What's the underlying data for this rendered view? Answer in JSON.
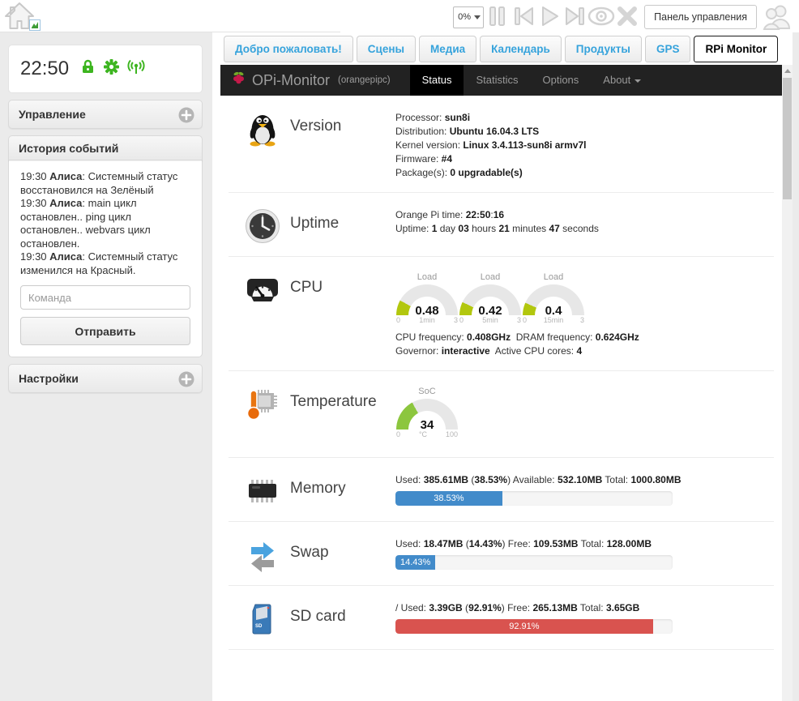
{
  "topbar": {
    "volume": "0%",
    "panel_button": "Панель управления"
  },
  "sidebar": {
    "clock": "22:50",
    "control_header": "Управление",
    "history_header": "История событий",
    "settings_header": "Настройки",
    "events": [
      {
        "time": "19:30 ",
        "name": "Алиса",
        "text": ": Системный статус восстановился на Зелёный"
      },
      {
        "time": "19:30 ",
        "name": "Алиса",
        "text": ": main цикл остановлен.. ping цикл остановлен.. webvars цикл остановлен."
      },
      {
        "time": "19:30 ",
        "name": "Алиса",
        "text": ": Системный статус изменился на Красный."
      }
    ],
    "command_placeholder": "Команда",
    "send_button": "Отправить"
  },
  "tabs": [
    {
      "name": "tab-welcome",
      "label": "Добро пожаловать!",
      "active": false
    },
    {
      "name": "tab-scenes",
      "label": "Сцены",
      "active": false
    },
    {
      "name": "tab-media",
      "label": "Медиа",
      "active": false
    },
    {
      "name": "tab-calendar",
      "label": "Календарь",
      "active": false
    },
    {
      "name": "tab-products",
      "label": "Продукты",
      "active": false
    },
    {
      "name": "tab-gps",
      "label": "GPS",
      "active": false
    },
    {
      "name": "tab-rpi-monitor",
      "label": "RPi Monitor",
      "active": true
    }
  ],
  "monitor": {
    "brand": "OPi-Monitor",
    "hostname": "(orangepipc)",
    "nav": [
      {
        "name": "nav-status",
        "label": "Status",
        "active": true,
        "caret": false
      },
      {
        "name": "nav-statistics",
        "label": "Statistics",
        "active": false,
        "caret": false
      },
      {
        "name": "nav-options",
        "label": "Options",
        "active": false,
        "caret": false
      },
      {
        "name": "nav-about",
        "label": "About",
        "active": false,
        "caret": true
      }
    ],
    "sections": [
      {
        "name": "version",
        "icon": "tux-icon",
        "title": "Version",
        "lines": [
          [
            [
              "Processor: ",
              0
            ],
            [
              "sun8i",
              1
            ]
          ],
          [
            [
              "Distribution: ",
              0
            ],
            [
              "Ubuntu 16.04.3 LTS",
              1
            ]
          ],
          [
            [
              "Kernel version: ",
              0
            ],
            [
              "Linux 3.4.113-sun8i armv7l",
              1
            ]
          ],
          [
            [
              "Firmware: ",
              0
            ],
            [
              "#4",
              1
            ]
          ],
          [
            [
              "Package(s): ",
              0
            ],
            [
              "0 upgradable(s)",
              1
            ]
          ]
        ]
      },
      {
        "name": "uptime",
        "icon": "clock-icon",
        "title": "Uptime",
        "lines": [
          [
            [
              "Orange Pi time: ",
              0
            ],
            [
              "22:50",
              1
            ],
            [
              ":",
              0
            ],
            [
              "16",
              1
            ]
          ],
          [
            [
              "Uptime: ",
              0
            ],
            [
              "1",
              1
            ],
            [
              " day ",
              0
            ],
            [
              "03",
              1
            ],
            [
              " hours ",
              0
            ],
            [
              "21",
              1
            ],
            [
              " minutes ",
              0
            ],
            [
              "47",
              1
            ],
            [
              " seconds",
              0
            ]
          ]
        ]
      },
      {
        "name": "cpu",
        "icon": "speedometer-icon",
        "title": "CPU",
        "gauges": [
          {
            "title": "Load",
            "value": "0.48",
            "min": "0",
            "sub": "1min",
            "max": "3",
            "fraction": 0.16,
            "color": "#b2c70e"
          },
          {
            "title": "Load",
            "value": "0.42",
            "min": "0",
            "sub": "5min",
            "max": "3",
            "fraction": 0.14,
            "color": "#b2c70e"
          },
          {
            "title": "Load",
            "value": "0.4",
            "min": "0",
            "sub": "15min",
            "max": "3",
            "fraction": 0.133,
            "color": "#b2c70e"
          }
        ],
        "lines": [
          [
            [
              "CPU frequency: ",
              0
            ],
            [
              "0.408GHz",
              1
            ],
            [
              "  DRAM frequency: ",
              0
            ],
            [
              "0.624GHz",
              1
            ]
          ],
          [
            [
              "Governor: ",
              0
            ],
            [
              "interactive",
              1
            ],
            [
              "  Active CPU cores: ",
              0
            ],
            [
              "4",
              1
            ]
          ]
        ]
      },
      {
        "name": "temperature",
        "icon": "thermometer-icon",
        "title": "Temperature",
        "gauges": [
          {
            "title": "SoC",
            "value": "34",
            "min": "0",
            "sub": "°C",
            "max": "100",
            "fraction": 0.34,
            "color": "#8cc63e"
          }
        ],
        "lines": []
      },
      {
        "name": "memory",
        "icon": "memory-chip-icon",
        "title": "Memory",
        "lines": [
          [
            [
              "Used: ",
              0
            ],
            [
              "385.61MB",
              1
            ],
            [
              " (",
              0
            ],
            [
              "38.53%",
              1
            ],
            [
              ") Available: ",
              0
            ],
            [
              "532.10MB",
              1
            ],
            [
              " Total: ",
              0
            ],
            [
              "1000.80MB",
              1
            ]
          ]
        ],
        "progress": {
          "percent": 38.53,
          "label": "38.53%",
          "color": "#428bca"
        }
      },
      {
        "name": "swap",
        "icon": "swap-icon",
        "title": "Swap",
        "lines": [
          [
            [
              "Used: ",
              0
            ],
            [
              "18.47MB",
              1
            ],
            [
              " (",
              0
            ],
            [
              "14.43%",
              1
            ],
            [
              ") Free: ",
              0
            ],
            [
              "109.53MB",
              1
            ],
            [
              " Total: ",
              0
            ],
            [
              "128.00MB",
              1
            ]
          ]
        ],
        "progress": {
          "percent": 14.43,
          "label": "14.43%",
          "color": "#428bca"
        }
      },
      {
        "name": "sdcard",
        "icon": "sd-card-icon",
        "title": "SD card",
        "lines": [
          [
            [
              "/ Used: ",
              0
            ],
            [
              "3.39GB",
              1
            ],
            [
              " (",
              0
            ],
            [
              "92.91%",
              1
            ],
            [
              ") Free: ",
              0
            ],
            [
              "265.13MB",
              1
            ],
            [
              " Total: ",
              0
            ],
            [
              "3.65GB",
              1
            ]
          ]
        ],
        "progress": {
          "percent": 92.91,
          "label": "92.91%",
          "color": "#d9534f"
        }
      }
    ]
  }
}
